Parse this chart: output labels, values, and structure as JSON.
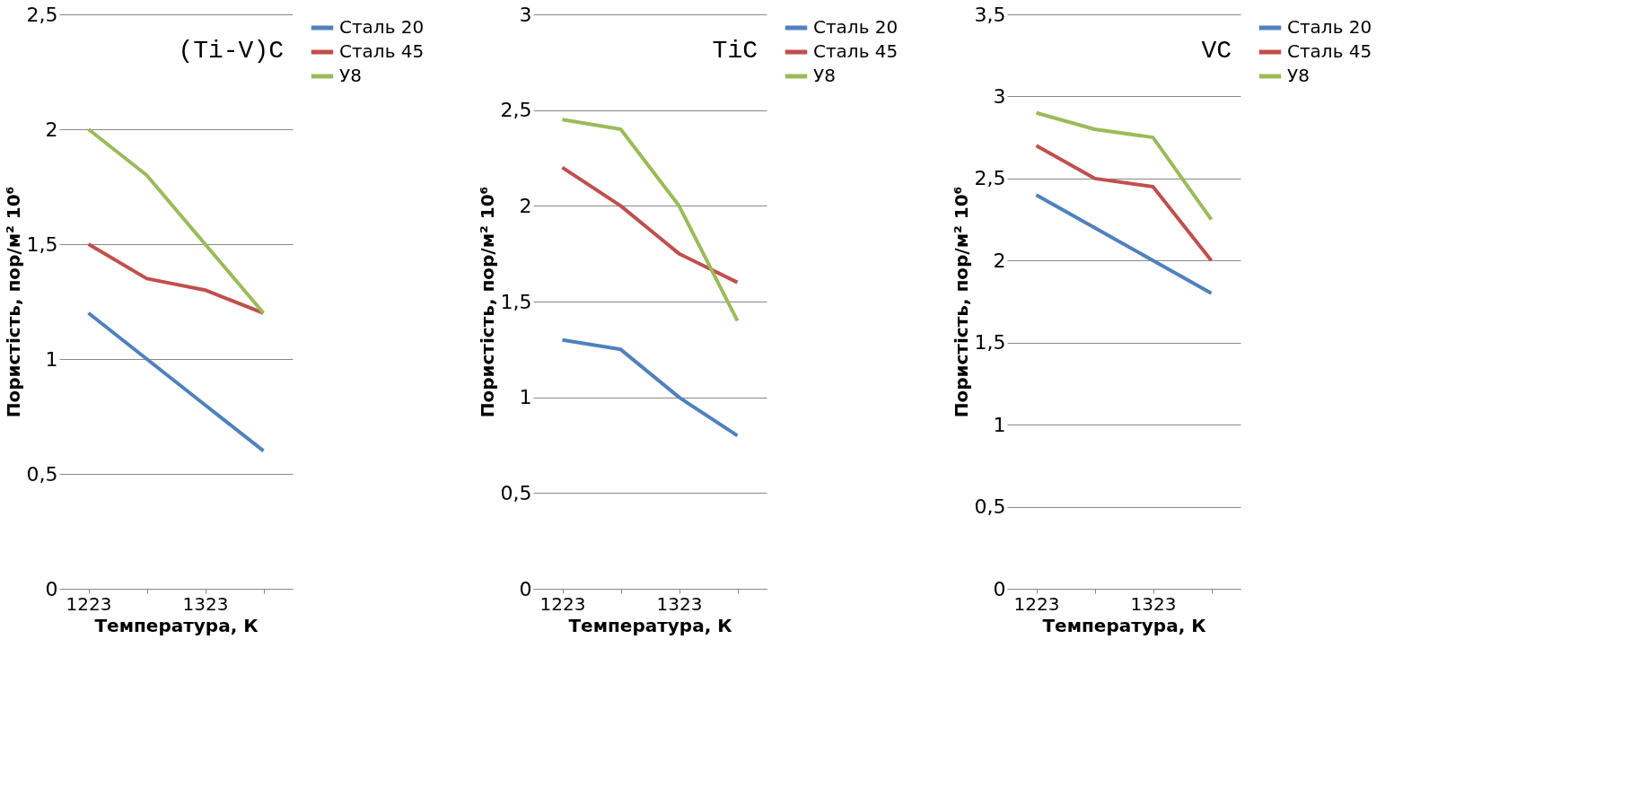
{
  "chart_data": [
    {
      "type": "line",
      "title": "(Ti-V)C",
      "xlabel": "Температура, К",
      "ylabel": "Пористість, пор/м² 10⁶",
      "categories": [
        "1223",
        null,
        "1323",
        null
      ],
      "ylim": [
        0,
        2.5
      ],
      "yticks": [
        0,
        {
          "value": 0.5,
          "label": "0,5"
        },
        1,
        {
          "value": 1.5,
          "label": "1,5"
        },
        2,
        {
          "value": 2.5,
          "label": "2,5"
        }
      ],
      "grid": "y",
      "legend": "right",
      "marker": "none",
      "line_style": "solid",
      "series": [
        {
          "name": "Сталь 20",
          "color": "#4f81bd",
          "values": [
            1.2,
            1.0,
            0.8,
            0.6
          ]
        },
        {
          "name": "Сталь 45",
          "color": "#c0504d",
          "values": [
            1.5,
            1.35,
            1.3,
            1.2
          ]
        },
        {
          "name": "У8",
          "color": "#9bbb59",
          "values": [
            2.0,
            1.8,
            1.5,
            1.2
          ]
        }
      ]
    },
    {
      "type": "line",
      "title": "TiC",
      "xlabel": "Температура, К",
      "ylabel": "Пористість, пор/м² 10⁶",
      "categories": [
        "1223",
        null,
        "1323",
        null
      ],
      "ylim": [
        0,
        3
      ],
      "yticks": [
        0,
        {
          "value": 0.5,
          "label": "0,5"
        },
        1,
        {
          "value": 1.5,
          "label": "1,5"
        },
        2,
        {
          "value": 2.5,
          "label": "2,5"
        },
        3
      ],
      "grid": "y",
      "legend": "right",
      "marker": "none",
      "line_style": "solid",
      "series": [
        {
          "name": "Сталь 20",
          "color": "#4f81bd",
          "values": [
            1.3,
            1.25,
            1.0,
            0.8
          ]
        },
        {
          "name": "Сталь 45",
          "color": "#c0504d",
          "values": [
            2.2,
            2.0,
            1.75,
            1.6
          ]
        },
        {
          "name": "У8",
          "color": "#9bbb59",
          "values": [
            2.45,
            2.4,
            2.0,
            1.4
          ]
        }
      ]
    },
    {
      "type": "line",
      "title": "VC",
      "xlabel": "Температура, К",
      "ylabel": "Пористість, пор/м² 10⁶",
      "categories": [
        "1223",
        null,
        "1323",
        null
      ],
      "ylim": [
        0,
        3.5
      ],
      "yticks": [
        0,
        {
          "value": 0.5,
          "label": "0,5"
        },
        1,
        {
          "value": 1.5,
          "label": "1,5"
        },
        2,
        {
          "value": 2.5,
          "label": "2,5"
        },
        3,
        {
          "value": 3.5,
          "label": "3,5"
        }
      ],
      "grid": "y",
      "legend": "right",
      "marker": "none",
      "line_style": "solid",
      "series": [
        {
          "name": "Сталь 20",
          "color": "#4f81bd",
          "values": [
            2.4,
            2.2,
            2.0,
            1.8
          ]
        },
        {
          "name": "Сталь 45",
          "color": "#c0504d",
          "values": [
            2.7,
            2.5,
            2.45,
            2.0
          ]
        },
        {
          "name": "У8",
          "color": "#9bbb59",
          "values": [
            2.9,
            2.8,
            2.75,
            2.25
          ]
        }
      ]
    }
  ]
}
